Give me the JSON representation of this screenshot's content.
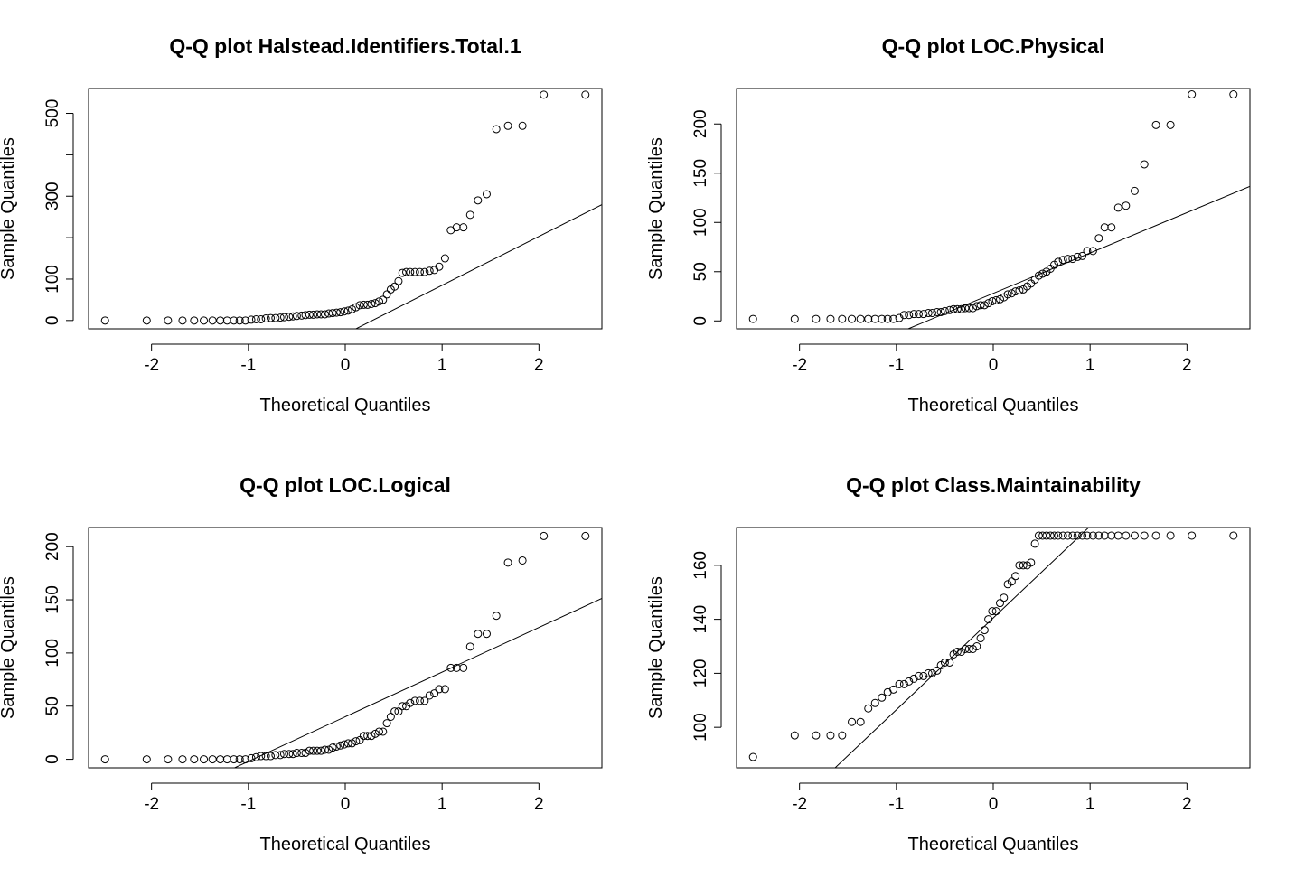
{
  "chart_data": [
    {
      "type": "scatter",
      "title": "Q-Q plot  Halstead.Identifiers.Total.1",
      "xlabel": "Theoretical Quantiles",
      "ylabel": "Sample Quantiles",
      "xlim": [
        -2.65,
        2.65
      ],
      "ylim": [
        -20,
        560
      ],
      "xticks": [
        -2,
        -1,
        0,
        1,
        2
      ],
      "yticks": [
        0,
        100,
        200,
        300,
        400,
        500
      ],
      "ytick_labels": [
        "0",
        "100",
        "",
        "300",
        "",
        "500"
      ],
      "reference_line": {
        "slope": 118,
        "intercept": -33
      },
      "points": [
        [
          -2.48,
          0
        ],
        [
          -2.05,
          0
        ],
        [
          -1.83,
          0
        ],
        [
          -1.68,
          0
        ],
        [
          -1.56,
          0
        ],
        [
          -1.46,
          0
        ],
        [
          -1.37,
          0
        ],
        [
          -1.29,
          0
        ],
        [
          -1.22,
          0
        ],
        [
          -1.15,
          0
        ],
        [
          -1.09,
          0
        ],
        [
          -1.03,
          0
        ],
        [
          -0.97,
          2
        ],
        [
          -0.92,
          3
        ],
        [
          -0.87,
          3
        ],
        [
          -0.82,
          5
        ],
        [
          -0.77,
          6
        ],
        [
          -0.72,
          6
        ],
        [
          -0.67,
          7
        ],
        [
          -0.63,
          8
        ],
        [
          -0.58,
          9
        ],
        [
          -0.54,
          10
        ],
        [
          -0.5,
          11
        ],
        [
          -0.45,
          12
        ],
        [
          -0.41,
          13
        ],
        [
          -0.37,
          14
        ],
        [
          -0.33,
          14
        ],
        [
          -0.29,
          15
        ],
        [
          -0.25,
          15
        ],
        [
          -0.21,
          15
        ],
        [
          -0.17,
          17
        ],
        [
          -0.13,
          18
        ],
        [
          -0.09,
          19
        ],
        [
          -0.05,
          20
        ],
        [
          -0.01,
          22
        ],
        [
          0.03,
          24
        ],
        [
          0.07,
          27
        ],
        [
          0.11,
          32
        ],
        [
          0.15,
          37
        ],
        [
          0.19,
          38
        ],
        [
          0.23,
          38
        ],
        [
          0.27,
          40
        ],
        [
          0.31,
          42
        ],
        [
          0.35,
          46
        ],
        [
          0.39,
          50
        ],
        [
          0.43,
          63
        ],
        [
          0.47,
          75
        ],
        [
          0.51,
          82
        ],
        [
          0.55,
          95
        ],
        [
          0.59,
          115
        ],
        [
          0.63,
          117
        ],
        [
          0.67,
          117
        ],
        [
          0.72,
          117
        ],
        [
          0.77,
          117
        ],
        [
          0.82,
          117
        ],
        [
          0.87,
          120
        ],
        [
          0.92,
          122
        ],
        [
          0.97,
          130
        ],
        [
          1.03,
          150
        ],
        [
          1.09,
          218
        ],
        [
          1.15,
          225
        ],
        [
          1.22,
          225
        ],
        [
          1.29,
          255
        ],
        [
          1.37,
          290
        ],
        [
          1.46,
          305
        ],
        [
          1.56,
          462
        ],
        [
          1.68,
          470
        ],
        [
          1.83,
          470
        ],
        [
          2.05,
          545
        ],
        [
          2.48,
          545
        ]
      ]
    },
    {
      "type": "scatter",
      "title": "Q-Q plot  LOC.Physical",
      "xlabel": "Theoretical Quantiles",
      "ylabel": "Sample Quantiles",
      "xlim": [
        -2.65,
        2.65
      ],
      "ylim": [
        -8,
        236
      ],
      "xticks": [
        -2,
        -1,
        0,
        1,
        2
      ],
      "yticks": [
        0,
        50,
        100,
        150,
        200
      ],
      "ytick_labels": [
        "0",
        "50",
        "100",
        "150",
        "200"
      ],
      "reference_line": {
        "slope": 41,
        "intercept": 28
      },
      "points": [
        [
          -2.48,
          2
        ],
        [
          -2.05,
          2
        ],
        [
          -1.83,
          2
        ],
        [
          -1.68,
          2
        ],
        [
          -1.56,
          2
        ],
        [
          -1.46,
          2
        ],
        [
          -1.37,
          2
        ],
        [
          -1.29,
          2
        ],
        [
          -1.22,
          2
        ],
        [
          -1.15,
          2
        ],
        [
          -1.09,
          2
        ],
        [
          -1.03,
          2
        ],
        [
          -0.97,
          3
        ],
        [
          -0.92,
          6
        ],
        [
          -0.87,
          6
        ],
        [
          -0.82,
          7
        ],
        [
          -0.77,
          7
        ],
        [
          -0.72,
          7
        ],
        [
          -0.67,
          8
        ],
        [
          -0.63,
          8
        ],
        [
          -0.58,
          9
        ],
        [
          -0.54,
          9
        ],
        [
          -0.5,
          10
        ],
        [
          -0.45,
          11
        ],
        [
          -0.41,
          12
        ],
        [
          -0.37,
          12
        ],
        [
          -0.33,
          12
        ],
        [
          -0.29,
          13
        ],
        [
          -0.25,
          13
        ],
        [
          -0.21,
          13
        ],
        [
          -0.17,
          15
        ],
        [
          -0.13,
          16
        ],
        [
          -0.09,
          16
        ],
        [
          -0.05,
          18
        ],
        [
          -0.01,
          20
        ],
        [
          0.03,
          21
        ],
        [
          0.07,
          22
        ],
        [
          0.11,
          24
        ],
        [
          0.15,
          27
        ],
        [
          0.19,
          28
        ],
        [
          0.23,
          30
        ],
        [
          0.27,
          31
        ],
        [
          0.31,
          32
        ],
        [
          0.35,
          35
        ],
        [
          0.39,
          38
        ],
        [
          0.43,
          42
        ],
        [
          0.47,
          46
        ],
        [
          0.51,
          48
        ],
        [
          0.55,
          50
        ],
        [
          0.59,
          53
        ],
        [
          0.63,
          57
        ],
        [
          0.67,
          60
        ],
        [
          0.72,
          62
        ],
        [
          0.77,
          63
        ],
        [
          0.82,
          63
        ],
        [
          0.87,
          65
        ],
        [
          0.92,
          66
        ],
        [
          0.97,
          71
        ],
        [
          1.03,
          71
        ],
        [
          1.09,
          84
        ],
        [
          1.15,
          95
        ],
        [
          1.22,
          95
        ],
        [
          1.29,
          115
        ],
        [
          1.37,
          117
        ],
        [
          1.46,
          132
        ],
        [
          1.56,
          159
        ],
        [
          1.68,
          199
        ],
        [
          1.83,
          199
        ],
        [
          2.05,
          230
        ],
        [
          2.48,
          230
        ]
      ]
    },
    {
      "type": "scatter",
      "title": "Q-Q plot  LOC.Logical",
      "xlabel": "Theoretical Quantiles",
      "ylabel": "Sample Quantiles",
      "xlim": [
        -2.65,
        2.65
      ],
      "ylim": [
        -8,
        218
      ],
      "xticks": [
        -2,
        -1,
        0,
        1,
        2
      ],
      "yticks": [
        0,
        50,
        100,
        150,
        200
      ],
      "ytick_labels": [
        "0",
        "50",
        "100",
        "150",
        "200"
      ],
      "reference_line": {
        "slope": 42,
        "intercept": 40
      },
      "points": [
        [
          -2.48,
          0
        ],
        [
          -2.05,
          0
        ],
        [
          -1.83,
          0
        ],
        [
          -1.68,
          0
        ],
        [
          -1.56,
          0
        ],
        [
          -1.46,
          0
        ],
        [
          -1.37,
          0
        ],
        [
          -1.29,
          0
        ],
        [
          -1.22,
          0
        ],
        [
          -1.15,
          0
        ],
        [
          -1.09,
          0
        ],
        [
          -1.03,
          0
        ],
        [
          -0.97,
          1
        ],
        [
          -0.92,
          2
        ],
        [
          -0.87,
          3
        ],
        [
          -0.82,
          3
        ],
        [
          -0.77,
          3
        ],
        [
          -0.72,
          4
        ],
        [
          -0.67,
          4
        ],
        [
          -0.63,
          5
        ],
        [
          -0.58,
          5
        ],
        [
          -0.54,
          5
        ],
        [
          -0.5,
          6
        ],
        [
          -0.45,
          6
        ],
        [
          -0.41,
          6
        ],
        [
          -0.37,
          8
        ],
        [
          -0.33,
          8
        ],
        [
          -0.29,
          8
        ],
        [
          -0.25,
          8
        ],
        [
          -0.21,
          9
        ],
        [
          -0.17,
          9
        ],
        [
          -0.13,
          11
        ],
        [
          -0.09,
          12
        ],
        [
          -0.05,
          13
        ],
        [
          -0.01,
          14
        ],
        [
          0.03,
          15
        ],
        [
          0.07,
          15
        ],
        [
          0.11,
          17
        ],
        [
          0.15,
          18
        ],
        [
          0.19,
          22
        ],
        [
          0.23,
          22
        ],
        [
          0.27,
          22
        ],
        [
          0.31,
          24
        ],
        [
          0.35,
          26
        ],
        [
          0.39,
          26
        ],
        [
          0.43,
          34
        ],
        [
          0.47,
          40
        ],
        [
          0.51,
          45
        ],
        [
          0.55,
          45
        ],
        [
          0.59,
          50
        ],
        [
          0.63,
          50
        ],
        [
          0.67,
          53
        ],
        [
          0.72,
          55
        ],
        [
          0.77,
          55
        ],
        [
          0.82,
          55
        ],
        [
          0.87,
          60
        ],
        [
          0.92,
          62
        ],
        [
          0.97,
          66
        ],
        [
          1.03,
          66
        ],
        [
          1.09,
          86
        ],
        [
          1.15,
          86
        ],
        [
          1.22,
          86
        ],
        [
          1.29,
          106
        ],
        [
          1.37,
          118
        ],
        [
          1.46,
          118
        ],
        [
          1.56,
          135
        ],
        [
          1.68,
          185
        ],
        [
          1.83,
          187
        ],
        [
          2.05,
          210
        ],
        [
          2.48,
          210
        ]
      ]
    },
    {
      "type": "scatter",
      "title": "Q-Q plot  Class.Maintainability",
      "xlabel": "Theoretical Quantiles",
      "ylabel": "Sample Quantiles",
      "xlim": [
        -2.65,
        2.65
      ],
      "ylim": [
        85,
        174
      ],
      "xticks": [
        -2,
        -1,
        0,
        1,
        2
      ],
      "yticks": [
        100,
        120,
        140,
        160
      ],
      "ytick_labels": [
        "100",
        "120",
        "140",
        "160"
      ],
      "reference_line": {
        "slope": 34,
        "intercept": 140.5
      },
      "points": [
        [
          -2.48,
          89
        ],
        [
          -2.05,
          97
        ],
        [
          -1.83,
          97
        ],
        [
          -1.68,
          97
        ],
        [
          -1.56,
          97
        ],
        [
          -1.46,
          102
        ],
        [
          -1.37,
          102
        ],
        [
          -1.29,
          107
        ],
        [
          -1.22,
          109
        ],
        [
          -1.15,
          111
        ],
        [
          -1.09,
          113
        ],
        [
          -1.03,
          114
        ],
        [
          -0.97,
          116
        ],
        [
          -0.92,
          116
        ],
        [
          -0.87,
          117
        ],
        [
          -0.82,
          118
        ],
        [
          -0.77,
          119
        ],
        [
          -0.72,
          119
        ],
        [
          -0.67,
          120
        ],
        [
          -0.63,
          120
        ],
        [
          -0.58,
          121
        ],
        [
          -0.54,
          123
        ],
        [
          -0.5,
          124
        ],
        [
          -0.45,
          124
        ],
        [
          -0.41,
          127
        ],
        [
          -0.37,
          128
        ],
        [
          -0.33,
          128
        ],
        [
          -0.29,
          129
        ],
        [
          -0.25,
          129
        ],
        [
          -0.21,
          129
        ],
        [
          -0.17,
          130
        ],
        [
          -0.13,
          133
        ],
        [
          -0.09,
          136
        ],
        [
          -0.05,
          140
        ],
        [
          -0.01,
          143
        ],
        [
          0.03,
          143
        ],
        [
          0.07,
          146
        ],
        [
          0.11,
          148
        ],
        [
          0.15,
          153
        ],
        [
          0.19,
          154
        ],
        [
          0.23,
          156
        ],
        [
          0.27,
          160
        ],
        [
          0.31,
          160
        ],
        [
          0.35,
          160
        ],
        [
          0.39,
          161
        ],
        [
          0.43,
          168
        ],
        [
          0.47,
          171
        ],
        [
          0.51,
          171
        ],
        [
          0.55,
          171
        ],
        [
          0.59,
          171
        ],
        [
          0.63,
          171
        ],
        [
          0.67,
          171
        ],
        [
          0.72,
          171
        ],
        [
          0.77,
          171
        ],
        [
          0.82,
          171
        ],
        [
          0.87,
          171
        ],
        [
          0.92,
          171
        ],
        [
          0.97,
          171
        ],
        [
          1.03,
          171
        ],
        [
          1.09,
          171
        ],
        [
          1.15,
          171
        ],
        [
          1.22,
          171
        ],
        [
          1.29,
          171
        ],
        [
          1.37,
          171
        ],
        [
          1.46,
          171
        ],
        [
          1.56,
          171
        ],
        [
          1.68,
          171
        ],
        [
          1.83,
          171
        ],
        [
          2.05,
          171
        ],
        [
          2.48,
          171
        ]
      ]
    }
  ]
}
